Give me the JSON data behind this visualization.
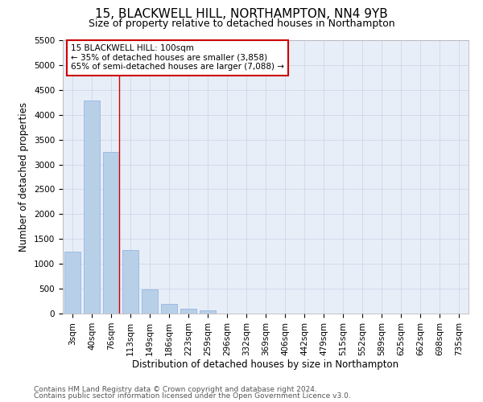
{
  "title1": "15, BLACKWELL HILL, NORTHAMPTON, NN4 9YB",
  "title2": "Size of property relative to detached houses in Northampton",
  "xlabel": "Distribution of detached houses by size in Northampton",
  "ylabel": "Number of detached properties",
  "categories": [
    "3sqm",
    "40sqm",
    "76sqm",
    "113sqm",
    "149sqm",
    "186sqm",
    "223sqm",
    "259sqm",
    "296sqm",
    "332sqm",
    "369sqm",
    "406sqm",
    "442sqm",
    "479sqm",
    "515sqm",
    "552sqm",
    "589sqm",
    "625sqm",
    "662sqm",
    "698sqm",
    "735sqm"
  ],
  "values": [
    1250,
    4280,
    3250,
    1280,
    480,
    200,
    90,
    60,
    0,
    0,
    0,
    0,
    0,
    0,
    0,
    0,
    0,
    0,
    0,
    0,
    0
  ],
  "bar_color": "#b8cfe8",
  "bar_edge_color": "#8aafe0",
  "vline_color": "#cc0000",
  "annotation_box_text": "15 BLACKWELL HILL: 100sqm\n← 35% of detached houses are smaller (3,858)\n65% of semi-detached houses are larger (7,088) →",
  "annotation_box_color": "#cc0000",
  "ylim": [
    0,
    5500
  ],
  "yticks": [
    0,
    500,
    1000,
    1500,
    2000,
    2500,
    3000,
    3500,
    4000,
    4500,
    5000,
    5500
  ],
  "grid_color": "#c8d4e8",
  "bg_color": "#e8eef8",
  "footer1": "Contains HM Land Registry data © Crown copyright and database right 2024.",
  "footer2": "Contains public sector information licensed under the Open Government Licence v3.0.",
  "title1_fontsize": 11,
  "title2_fontsize": 9,
  "xlabel_fontsize": 8.5,
  "ylabel_fontsize": 8.5,
  "tick_fontsize": 7.5,
  "annot_fontsize": 7.5,
  "footer_fontsize": 6.5
}
